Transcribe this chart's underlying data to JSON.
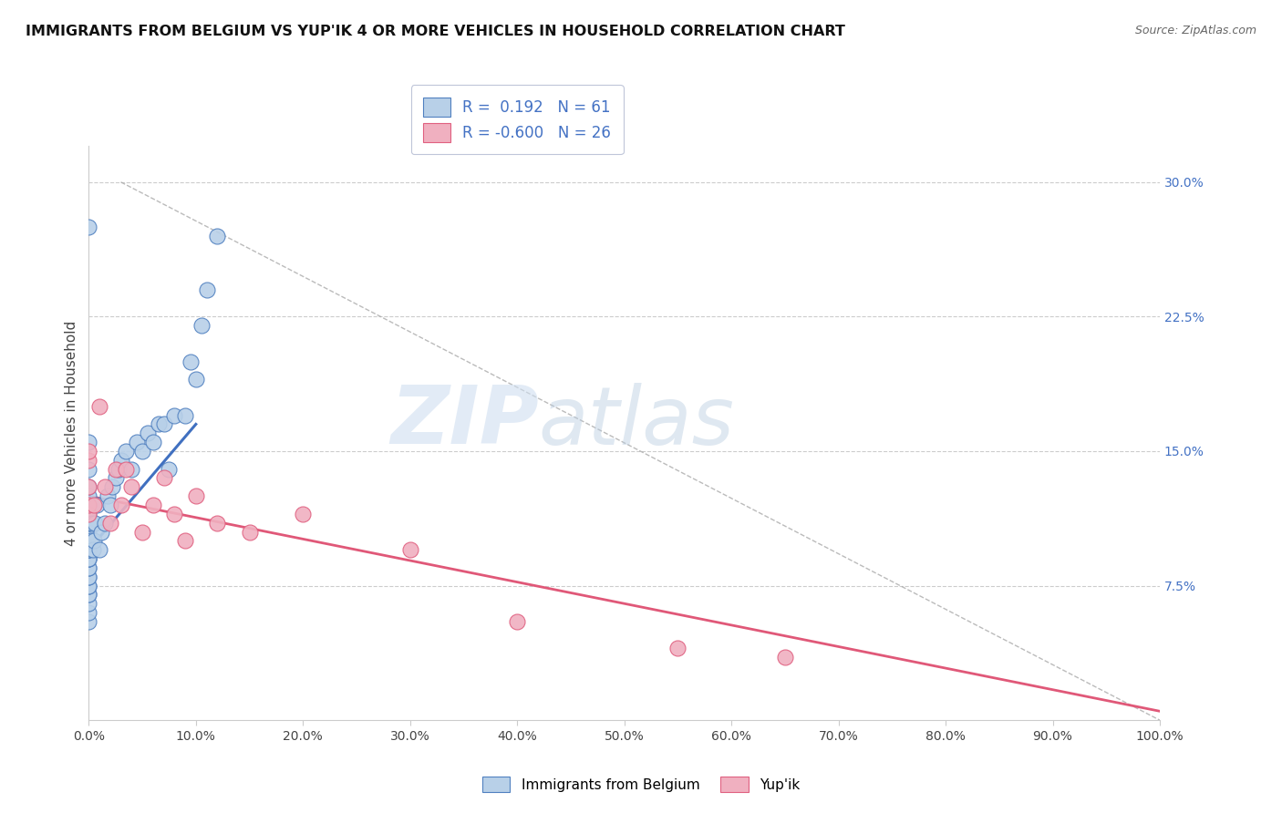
{
  "title": "IMMIGRANTS FROM BELGIUM VS YUP'IK 4 OR MORE VEHICLES IN HOUSEHOLD CORRELATION CHART",
  "source": "Source: ZipAtlas.com",
  "ylabel": "4 or more Vehicles in Household",
  "legend_label1": "Immigrants from Belgium",
  "legend_label2": "Yup'ik",
  "r1": 0.192,
  "n1": 61,
  "r2": -0.6,
  "n2": 26,
  "color_blue_fill": "#b8d0e8",
  "color_pink_fill": "#f0b0c0",
  "color_blue_edge": "#5080c0",
  "color_pink_edge": "#e06080",
  "color_blue_line": "#4070c0",
  "color_pink_line": "#e05878",
  "color_blue_text": "#4472c4",
  "background_color": "#ffffff",
  "watermark_zip": "ZIP",
  "watermark_atlas": "atlas",
  "xmin": 0.0,
  "xmax": 100.0,
  "ymin": 0.0,
  "ymax": 32.0,
  "x_ticks": [
    0,
    10,
    20,
    30,
    40,
    50,
    60,
    70,
    80,
    90,
    100
  ],
  "y_ticks_right": [
    7.5,
    15.0,
    22.5,
    30.0
  ],
  "blue_x": [
    0.0,
    0.0,
    0.0,
    0.0,
    0.0,
    0.0,
    0.0,
    0.0,
    0.0,
    0.0,
    0.0,
    0.0,
    0.0,
    0.0,
    0.0,
    0.0,
    0.0,
    0.0,
    0.0,
    0.0,
    0.0,
    0.0,
    0.0,
    0.0,
    0.0,
    0.0,
    0.0,
    0.0,
    0.0,
    0.0,
    0.2,
    0.3,
    0.4,
    0.5,
    0.6,
    0.7,
    1.0,
    1.2,
    1.5,
    1.8,
    2.0,
    2.2,
    2.5,
    2.8,
    3.0,
    3.5,
    4.0,
    4.5,
    5.0,
    5.5,
    6.0,
    6.5,
    7.0,
    7.5,
    8.0,
    9.0,
    9.5,
    10.0,
    10.5,
    11.0,
    12.0
  ],
  "blue_y": [
    5.5,
    6.0,
    6.5,
    7.0,
    7.0,
    7.5,
    7.5,
    8.0,
    8.0,
    8.5,
    8.5,
    9.0,
    9.0,
    9.0,
    9.5,
    9.5,
    9.5,
    10.0,
    10.0,
    10.0,
    10.5,
    11.0,
    11.0,
    11.5,
    12.0,
    12.5,
    13.0,
    14.0,
    15.5,
    27.5,
    10.0,
    11.0,
    9.5,
    10.0,
    11.0,
    12.0,
    9.5,
    10.5,
    11.0,
    12.5,
    12.0,
    13.0,
    13.5,
    14.0,
    14.5,
    15.0,
    14.0,
    15.5,
    15.0,
    16.0,
    15.5,
    16.5,
    16.5,
    14.0,
    17.0,
    17.0,
    20.0,
    19.0,
    22.0,
    24.0,
    27.0
  ],
  "pink_x": [
    0.0,
    0.0,
    0.0,
    0.0,
    0.0,
    0.5,
    1.0,
    1.5,
    2.0,
    2.5,
    3.0,
    3.5,
    4.0,
    5.0,
    6.0,
    7.0,
    8.0,
    9.0,
    10.0,
    12.0,
    15.0,
    20.0,
    30.0,
    40.0,
    55.0,
    65.0
  ],
  "pink_y": [
    11.5,
    12.0,
    13.0,
    14.5,
    15.0,
    12.0,
    17.5,
    13.0,
    11.0,
    14.0,
    12.0,
    14.0,
    13.0,
    10.5,
    12.0,
    13.5,
    11.5,
    10.0,
    12.5,
    11.0,
    10.5,
    11.5,
    9.5,
    5.5,
    4.0,
    3.5
  ],
  "blue_line_x0": 0.0,
  "blue_line_x1": 10.0,
  "blue_line_y0": 9.5,
  "blue_line_y1": 16.5,
  "pink_line_x0": 0.0,
  "pink_line_x1": 100.0,
  "pink_line_y0": 12.5,
  "pink_line_y1": 0.5,
  "diag_x0": 3.0,
  "diag_y0": 30.0,
  "diag_x1": 100.0,
  "diag_y1": 0.0
}
